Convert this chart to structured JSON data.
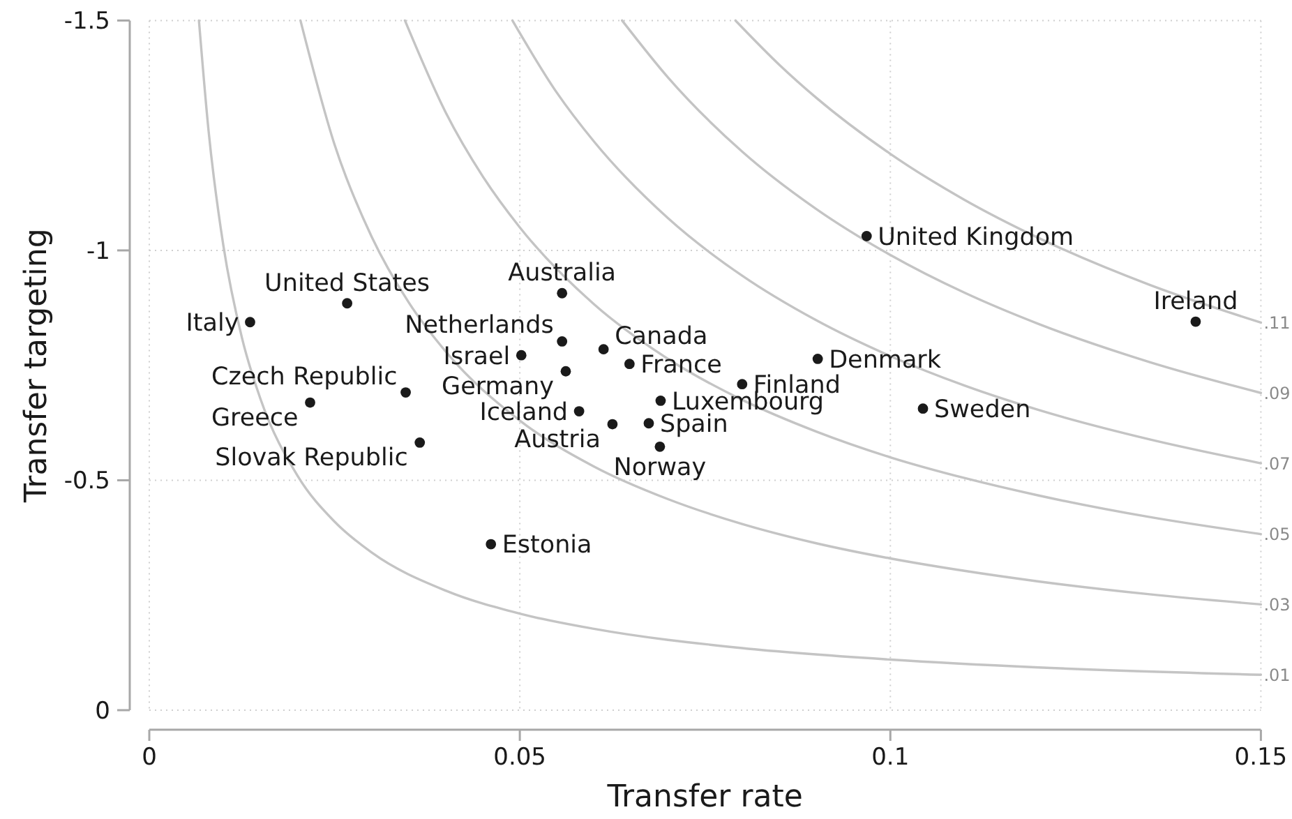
{
  "chart_data": {
    "type": "scatter",
    "xlabel": "Transfer rate",
    "ylabel": "Transfer targeting",
    "xlim": [
      0,
      0.15
    ],
    "xticks": [
      0,
      0.05,
      0.1,
      0.15
    ],
    "ylim": [
      0,
      -1.5
    ],
    "yticks": [
      -1.5,
      -1,
      -0.5,
      0
    ],
    "grid": true,
    "marker": "circle",
    "series": [
      {
        "name": ".01",
        "type": "line",
        "marker": "none",
        "color": "#c4c4c4",
        "x": [
          0.0067,
          0.008,
          0.01,
          0.0125,
          0.015,
          0.02,
          0.025,
          0.03,
          0.04,
          0.05,
          0.06,
          0.08,
          0.1,
          0.12,
          0.15
        ],
        "values": [
          -1.5,
          -1.26,
          -1.01,
          -0.81,
          -0.677,
          -0.51,
          -0.41,
          -0.343,
          -0.26,
          -0.21,
          -0.177,
          -0.135,
          -0.11,
          -0.093,
          -0.077
        ]
      },
      {
        "name": ".03",
        "type": "line",
        "marker": "none",
        "color": "#c4c4c4",
        "x": [
          0.0204,
          0.025,
          0.03,
          0.035,
          0.04,
          0.05,
          0.06,
          0.07,
          0.08,
          0.09,
          0.1,
          0.11,
          0.12,
          0.135,
          0.15
        ],
        "values": [
          -1.5,
          -1.23,
          -1.03,
          -0.887,
          -0.78,
          -0.63,
          -0.53,
          -0.459,
          -0.405,
          -0.363,
          -0.33,
          -0.303,
          -0.28,
          -0.252,
          -0.23
        ]
      },
      {
        "name": ".05",
        "type": "line",
        "marker": "none",
        "color": "#c4c4c4",
        "x": [
          0.0345,
          0.04,
          0.045,
          0.05,
          0.06,
          0.07,
          0.08,
          0.09,
          0.1,
          0.11,
          0.12,
          0.135,
          0.15
        ],
        "values": [
          -1.5,
          -1.3,
          -1.161,
          -1.05,
          -0.883,
          -0.764,
          -0.675,
          -0.606,
          -0.55,
          -0.505,
          -0.467,
          -0.42,
          -0.383
        ]
      },
      {
        "name": ".07",
        "type": "line",
        "marker": "none",
        "color": "#c4c4c4",
        "x": [
          0.049,
          0.055,
          0.06,
          0.07,
          0.08,
          0.09,
          0.1,
          0.11,
          0.12,
          0.135,
          0.15
        ],
        "values": [
          -1.5,
          -1.343,
          -1.237,
          -1.07,
          -0.945,
          -0.848,
          -0.77,
          -0.706,
          -0.653,
          -0.589,
          -0.537
        ]
      },
      {
        "name": ".09",
        "type": "line",
        "marker": "none",
        "color": "#c4c4c4",
        "x": [
          0.0638,
          0.07,
          0.08,
          0.09,
          0.1,
          0.11,
          0.12,
          0.135,
          0.15
        ],
        "values": [
          -1.5,
          -1.376,
          -1.215,
          -1.09,
          -0.99,
          -0.908,
          -0.84,
          -0.757,
          -0.69
        ]
      },
      {
        "name": ".11",
        "type": "line",
        "marker": "none",
        "color": "#c4c4c4",
        "x": [
          0.0791,
          0.085,
          0.09,
          0.1,
          0.11,
          0.12,
          0.135,
          0.15
        ],
        "values": [
          -1.5,
          -1.404,
          -1.332,
          -1.21,
          -1.11,
          -1.027,
          -0.925,
          -0.843
        ]
      },
      {
        "name": "Italy",
        "color": "#1a1a1a",
        "x": [
          0.0136
        ],
        "values": [
          -0.844
        ]
      },
      {
        "name": "United States",
        "color": "#1a1a1a",
        "x": [
          0.0267
        ],
        "values": [
          -0.885
        ]
      },
      {
        "name": "Czech Republic",
        "color": "#1a1a1a",
        "x": [
          0.0346
        ],
        "values": [
          -0.691
        ]
      },
      {
        "name": "Greece",
        "color": "#1a1a1a",
        "x": [
          0.0217
        ],
        "values": [
          -0.669
        ]
      },
      {
        "name": "Slovak Republic",
        "color": "#1a1a1a",
        "x": [
          0.0365
        ],
        "values": [
          -0.582
        ]
      },
      {
        "name": "Australia",
        "color": "#1a1a1a",
        "x": [
          0.0557
        ],
        "values": [
          -0.907
        ]
      },
      {
        "name": "Netherlands",
        "color": "#1a1a1a",
        "x": [
          0.0557
        ],
        "values": [
          -0.802
        ]
      },
      {
        "name": "Israel",
        "color": "#1a1a1a",
        "x": [
          0.0502
        ],
        "values": [
          -0.772
        ]
      },
      {
        "name": "Germany",
        "color": "#1a1a1a",
        "x": [
          0.0562
        ],
        "values": [
          -0.737
        ]
      },
      {
        "name": "Canada",
        "color": "#1a1a1a",
        "x": [
          0.0613
        ],
        "values": [
          -0.785
        ]
      },
      {
        "name": "France",
        "color": "#1a1a1a",
        "x": [
          0.0648
        ],
        "values": [
          -0.753
        ]
      },
      {
        "name": "Iceland",
        "color": "#1a1a1a",
        "x": [
          0.058
        ],
        "values": [
          -0.65
        ]
      },
      {
        "name": "Austria",
        "color": "#1a1a1a",
        "x": [
          0.0625
        ],
        "values": [
          -0.622
        ]
      },
      {
        "name": "Spain",
        "color": "#1a1a1a",
        "x": [
          0.0674
        ],
        "values": [
          -0.624
        ]
      },
      {
        "name": "Norway",
        "color": "#1a1a1a",
        "x": [
          0.0689
        ],
        "values": [
          -0.573
        ]
      },
      {
        "name": "Luxembourg",
        "color": "#1a1a1a",
        "x": [
          0.069
        ],
        "values": [
          -0.673
        ]
      },
      {
        "name": "Finland",
        "color": "#1a1a1a",
        "x": [
          0.08
        ],
        "values": [
          -0.709
        ]
      },
      {
        "name": "Denmark",
        "color": "#1a1a1a",
        "x": [
          0.0902
        ],
        "values": [
          -0.764
        ]
      },
      {
        "name": "Sweden",
        "color": "#1a1a1a",
        "x": [
          0.1044
        ],
        "values": [
          -0.656
        ]
      },
      {
        "name": "United Kingdom",
        "color": "#1a1a1a",
        "x": [
          0.0968
        ],
        "values": [
          -1.031
        ]
      },
      {
        "name": "Ireland",
        "color": "#1a1a1a",
        "x": [
          0.1412
        ],
        "values": [
          -0.845
        ]
      },
      {
        "name": "Estonia",
        "color": "#1a1a1a",
        "x": [
          0.0461
        ],
        "values": [
          -0.361
        ]
      }
    ]
  }
}
